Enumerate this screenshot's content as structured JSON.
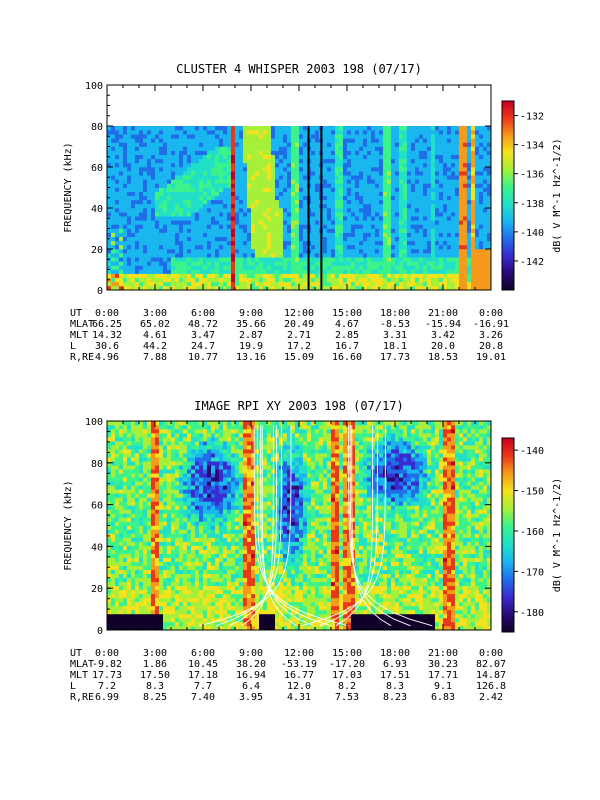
{
  "chart_data": [
    {
      "type": "heatmap",
      "title": "CLUSTER 4 WHISPER 2003 198 (07/17)",
      "ylabel": "FREQUENCY (kHz)",
      "ylim": [
        0,
        100
      ],
      "yticks": [
        0,
        20,
        40,
        60,
        80,
        100
      ],
      "data_top_khz": 80,
      "xlim_hours": [
        0,
        24
      ],
      "x_tick_labels": [
        "0:00",
        "3:00",
        "6:00",
        "9:00",
        "12:00",
        "15:00",
        "18:00",
        "21:00",
        "0:00"
      ],
      "colorbar": {
        "label": "dB( V M^-1 Hz^-1/2)",
        "range": [
          -144,
          -131
        ],
        "ticks": [
          -132,
          -134,
          -136,
          -138,
          -140,
          -142
        ]
      },
      "vertical_markers_hours": [
        12.6,
        13.4
      ],
      "ephemeris": {
        "row_labels": [
          "UT",
          "MLAT",
          "MLT",
          "L",
          "R,RE"
        ],
        "UT": [
          "0:00",
          "3:00",
          "6:00",
          "9:00",
          "12:00",
          "15:00",
          "18:00",
          "21:00",
          "0:00"
        ],
        "MLAT": [
          "66.25",
          "65.02",
          "48.72",
          "35.66",
          "20.49",
          "4.67",
          "-8.53",
          "-15.94",
          "-16.91"
        ],
        "MLT": [
          "14.32",
          "4.61",
          "3.47",
          "2.87",
          "2.71",
          "2.85",
          "3.31",
          "3.42",
          "3.26"
        ],
        "L": [
          "30.6",
          "44.2",
          "24.7",
          "19.9",
          "17.2",
          "16.7",
          "18.1",
          "20.0",
          "20.8"
        ],
        "R,RE": [
          "4.96",
          "7.88",
          "10.77",
          "13.16",
          "15.09",
          "16.60",
          "17.73",
          "18.53",
          "19.01"
        ]
      }
    },
    {
      "type": "heatmap",
      "title": "IMAGE RPI XY 2003 198 (07/17)",
      "ylabel": "FREQUENCY (kHz)",
      "ylim": [
        0,
        100
      ],
      "yticks": [
        0,
        20,
        40,
        60,
        80,
        100
      ],
      "data_top_khz": 100,
      "xlim_hours": [
        0,
        24
      ],
      "x_tick_labels": [
        "0:00",
        "3:00",
        "6:00",
        "9:00",
        "12:00",
        "15:00",
        "18:00",
        "21:00",
        "0:00"
      ],
      "colorbar": {
        "label": "dB( V M^-1 Hz^-1/2)",
        "range": [
          -185,
          -137
        ],
        "ticks": [
          -140,
          -150,
          -160,
          -170,
          -180
        ]
      },
      "ephemeris": {
        "row_labels": [
          "UT",
          "MLAT",
          "MLT",
          "L",
          "R,RE"
        ],
        "UT": [
          "0:00",
          "3:00",
          "6:00",
          "9:00",
          "12:00",
          "15:00",
          "18:00",
          "21:00",
          "0:00"
        ],
        "MLAT": [
          "-9.82",
          "1.86",
          "10.45",
          "38.20",
          "-53.19",
          "-17.20",
          "6.93",
          "30.23",
          "82.07"
        ],
        "MLT": [
          "17.73",
          "17.50",
          "17.18",
          "16.94",
          "16.77",
          "17.03",
          "17.51",
          "17.71",
          "14.87"
        ],
        "L": [
          "7.2",
          "8.3",
          "7.7",
          "6.4",
          "12.0",
          "8.2",
          "8.3",
          "9.1",
          "126.8"
        ],
        "R,RE": [
          "6.99",
          "8.25",
          "7.40",
          "3.95",
          "4.31",
          "7.53",
          "8.23",
          "6.83",
          "2.42"
        ]
      }
    }
  ],
  "colormap": [
    "#10002a",
    "#2a0a78",
    "#3a2bd0",
    "#1f6ee8",
    "#1ab6f0",
    "#22e0c8",
    "#3cf28a",
    "#a6f03a",
    "#f5e21e",
    "#f59a1a",
    "#e8381a",
    "#c8001e"
  ]
}
